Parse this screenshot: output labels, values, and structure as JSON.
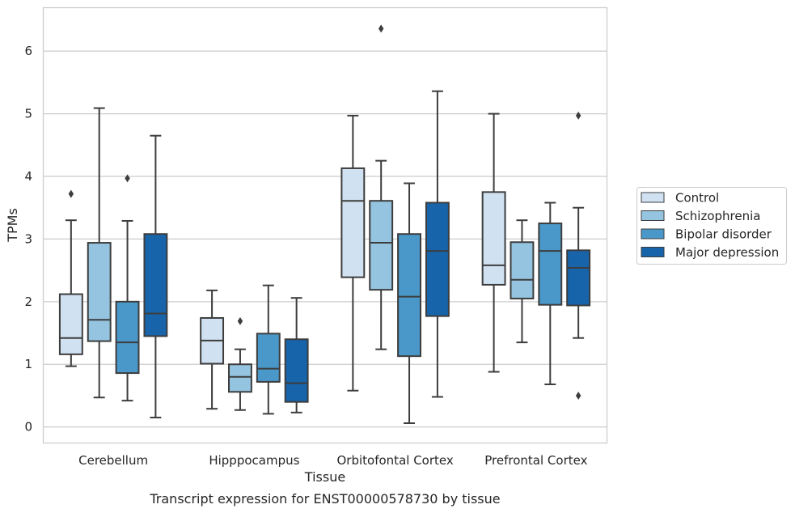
{
  "caption": "Transcript expression for ENST00000578730 by tissue",
  "chart_data": {
    "type": "boxplot",
    "xlabel": "Tissue",
    "ylabel": "TPMs",
    "ylim": [
      -0.25,
      6.7
    ],
    "yticks": [
      0,
      1,
      2,
      3,
      4,
      5,
      6
    ],
    "grid": true,
    "legend_position": "right",
    "categories": [
      "Cerebellum",
      "Hipppocampus",
      "Orbitofontal Cortex",
      "Prefrontal Cortex"
    ],
    "series": [
      {
        "name": "Control",
        "color": "#d0e1f2",
        "boxes": [
          {
            "whisker_low": 0.97,
            "q1": 1.16,
            "median": 1.42,
            "q3": 2.12,
            "whisker_high": 3.3,
            "outliers": [
              3.72
            ]
          },
          {
            "whisker_low": 0.29,
            "q1": 1.01,
            "median": 1.38,
            "q3": 1.74,
            "whisker_high": 2.18,
            "outliers": []
          },
          {
            "whisker_low": 0.58,
            "q1": 2.39,
            "median": 3.61,
            "q3": 4.13,
            "whisker_high": 4.97,
            "outliers": []
          },
          {
            "whisker_low": 0.88,
            "q1": 2.27,
            "median": 2.58,
            "q3": 3.75,
            "whisker_high": 5.0,
            "outliers": []
          }
        ]
      },
      {
        "name": "Schizophrenia",
        "color": "#94c4df",
        "boxes": [
          {
            "whisker_low": 0.47,
            "q1": 1.37,
            "median": 1.71,
            "q3": 2.94,
            "whisker_high": 5.09,
            "outliers": []
          },
          {
            "whisker_low": 0.27,
            "q1": 0.56,
            "median": 0.8,
            "q3": 1.0,
            "whisker_high": 1.24,
            "outliers": [
              1.69
            ]
          },
          {
            "whisker_low": 1.24,
            "q1": 2.19,
            "median": 2.94,
            "q3": 3.61,
            "whisker_high": 4.25,
            "outliers": [
              6.36
            ]
          },
          {
            "whisker_low": 1.35,
            "q1": 2.05,
            "median": 2.35,
            "q3": 2.95,
            "whisker_high": 3.3,
            "outliers": []
          }
        ]
      },
      {
        "name": "Bipolar disorder",
        "color": "#4a98c9",
        "boxes": [
          {
            "whisker_low": 0.42,
            "q1": 0.86,
            "median": 1.35,
            "q3": 2.0,
            "whisker_high": 3.29,
            "outliers": [
              3.97
            ]
          },
          {
            "whisker_low": 0.21,
            "q1": 0.72,
            "median": 0.93,
            "q3": 1.49,
            "whisker_high": 2.26,
            "outliers": []
          },
          {
            "whisker_low": 0.06,
            "q1": 1.13,
            "median": 2.08,
            "q3": 3.08,
            "whisker_high": 3.89,
            "outliers": []
          },
          {
            "whisker_low": 0.68,
            "q1": 1.95,
            "median": 2.81,
            "q3": 3.25,
            "whisker_high": 3.58,
            "outliers": []
          }
        ]
      },
      {
        "name": "Major depression",
        "color": "#1764ab",
        "boxes": [
          {
            "whisker_low": 0.15,
            "q1": 1.45,
            "median": 1.81,
            "q3": 3.08,
            "whisker_high": 4.65,
            "outliers": []
          },
          {
            "whisker_low": 0.23,
            "q1": 0.4,
            "median": 0.7,
            "q3": 1.4,
            "whisker_high": 2.06,
            "outliers": []
          },
          {
            "whisker_low": 0.48,
            "q1": 1.77,
            "median": 2.81,
            "q3": 3.58,
            "whisker_high": 5.36,
            "outliers": []
          },
          {
            "whisker_low": 1.42,
            "q1": 1.94,
            "median": 2.54,
            "q3": 2.82,
            "whisker_high": 3.5,
            "outliers": [
              0.5,
              4.97
            ]
          }
        ]
      }
    ]
  }
}
